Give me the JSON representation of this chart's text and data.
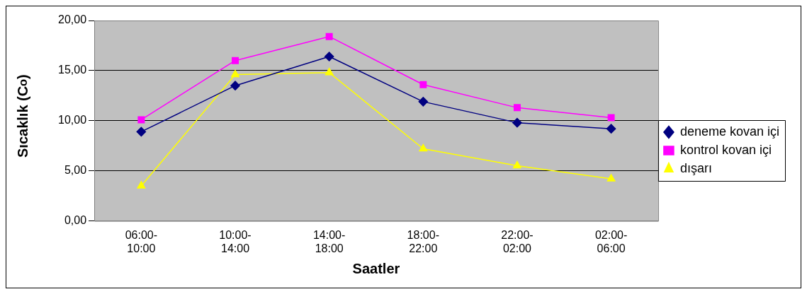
{
  "chart_data": {
    "type": "line",
    "xlabel": "Saatler",
    "ylabel": "Sıcaklık (C$^{o}$)",
    "categories": [
      "06:00-10:00",
      "10:00-14:00",
      "14:00-18:00",
      "18:00-22:00",
      "22:00-02:00",
      "02:00-06:00"
    ],
    "series": [
      {
        "name": "deneme kovan içi",
        "color": "#000080",
        "marker": "diamond",
        "values": [
          8.9,
          13.5,
          16.4,
          11.9,
          9.8,
          9.2
        ]
      },
      {
        "name": "kontrol kovan içi",
        "color": "#ff00ff",
        "marker": "square",
        "values": [
          10.1,
          16.0,
          18.4,
          13.6,
          11.3,
          10.3
        ]
      },
      {
        "name": "dışarı",
        "color": "#ffff00",
        "marker": "triangle",
        "values": [
          3.5,
          14.6,
          14.8,
          7.2,
          5.5,
          4.2
        ]
      }
    ],
    "ylim": [
      0,
      20
    ],
    "yticks": [
      {
        "value": 0,
        "label": "0,00"
      },
      {
        "value": 5,
        "label": "5,00"
      },
      {
        "value": 10,
        "label": "10,00"
      },
      {
        "value": 15,
        "label": "15,00"
      },
      {
        "value": 20,
        "label": "20,00"
      }
    ],
    "grid": "y",
    "legend": "right",
    "line_style": "solid"
  }
}
